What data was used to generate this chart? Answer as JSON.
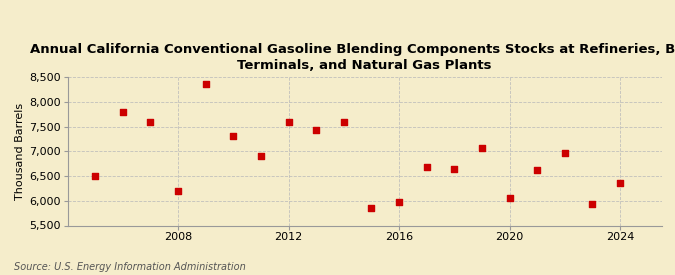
{
  "title": "Annual California Conventional Gasoline Blending Components Stocks at Refineries, Bulk\nTerminals, and Natural Gas Plants",
  "ylabel": "Thousand Barrels",
  "source": "Source: U.S. Energy Information Administration",
  "years": [
    2005,
    2006,
    2007,
    2008,
    2009,
    2010,
    2011,
    2012,
    2013,
    2014,
    2015,
    2016,
    2017,
    2018,
    2019,
    2020,
    2021,
    2022,
    2023,
    2024
  ],
  "values": [
    6500,
    7800,
    7600,
    6200,
    8350,
    7300,
    6900,
    7600,
    7420,
    7600,
    5850,
    5980,
    6680,
    6650,
    7060,
    6050,
    6620,
    6960,
    5940,
    6360
  ],
  "marker_color": "#CC0000",
  "marker_size": 20,
  "background_color": "#F5EDCB",
  "grid_color": "#BBBBBB",
  "ylim": [
    5500,
    8500
  ],
  "yticks": [
    5500,
    6000,
    6500,
    7000,
    7500,
    8000,
    8500
  ],
  "xticks": [
    2008,
    2012,
    2016,
    2020,
    2024
  ],
  "title_fontsize": 9.5,
  "label_fontsize": 8,
  "tick_fontsize": 8,
  "source_fontsize": 7
}
